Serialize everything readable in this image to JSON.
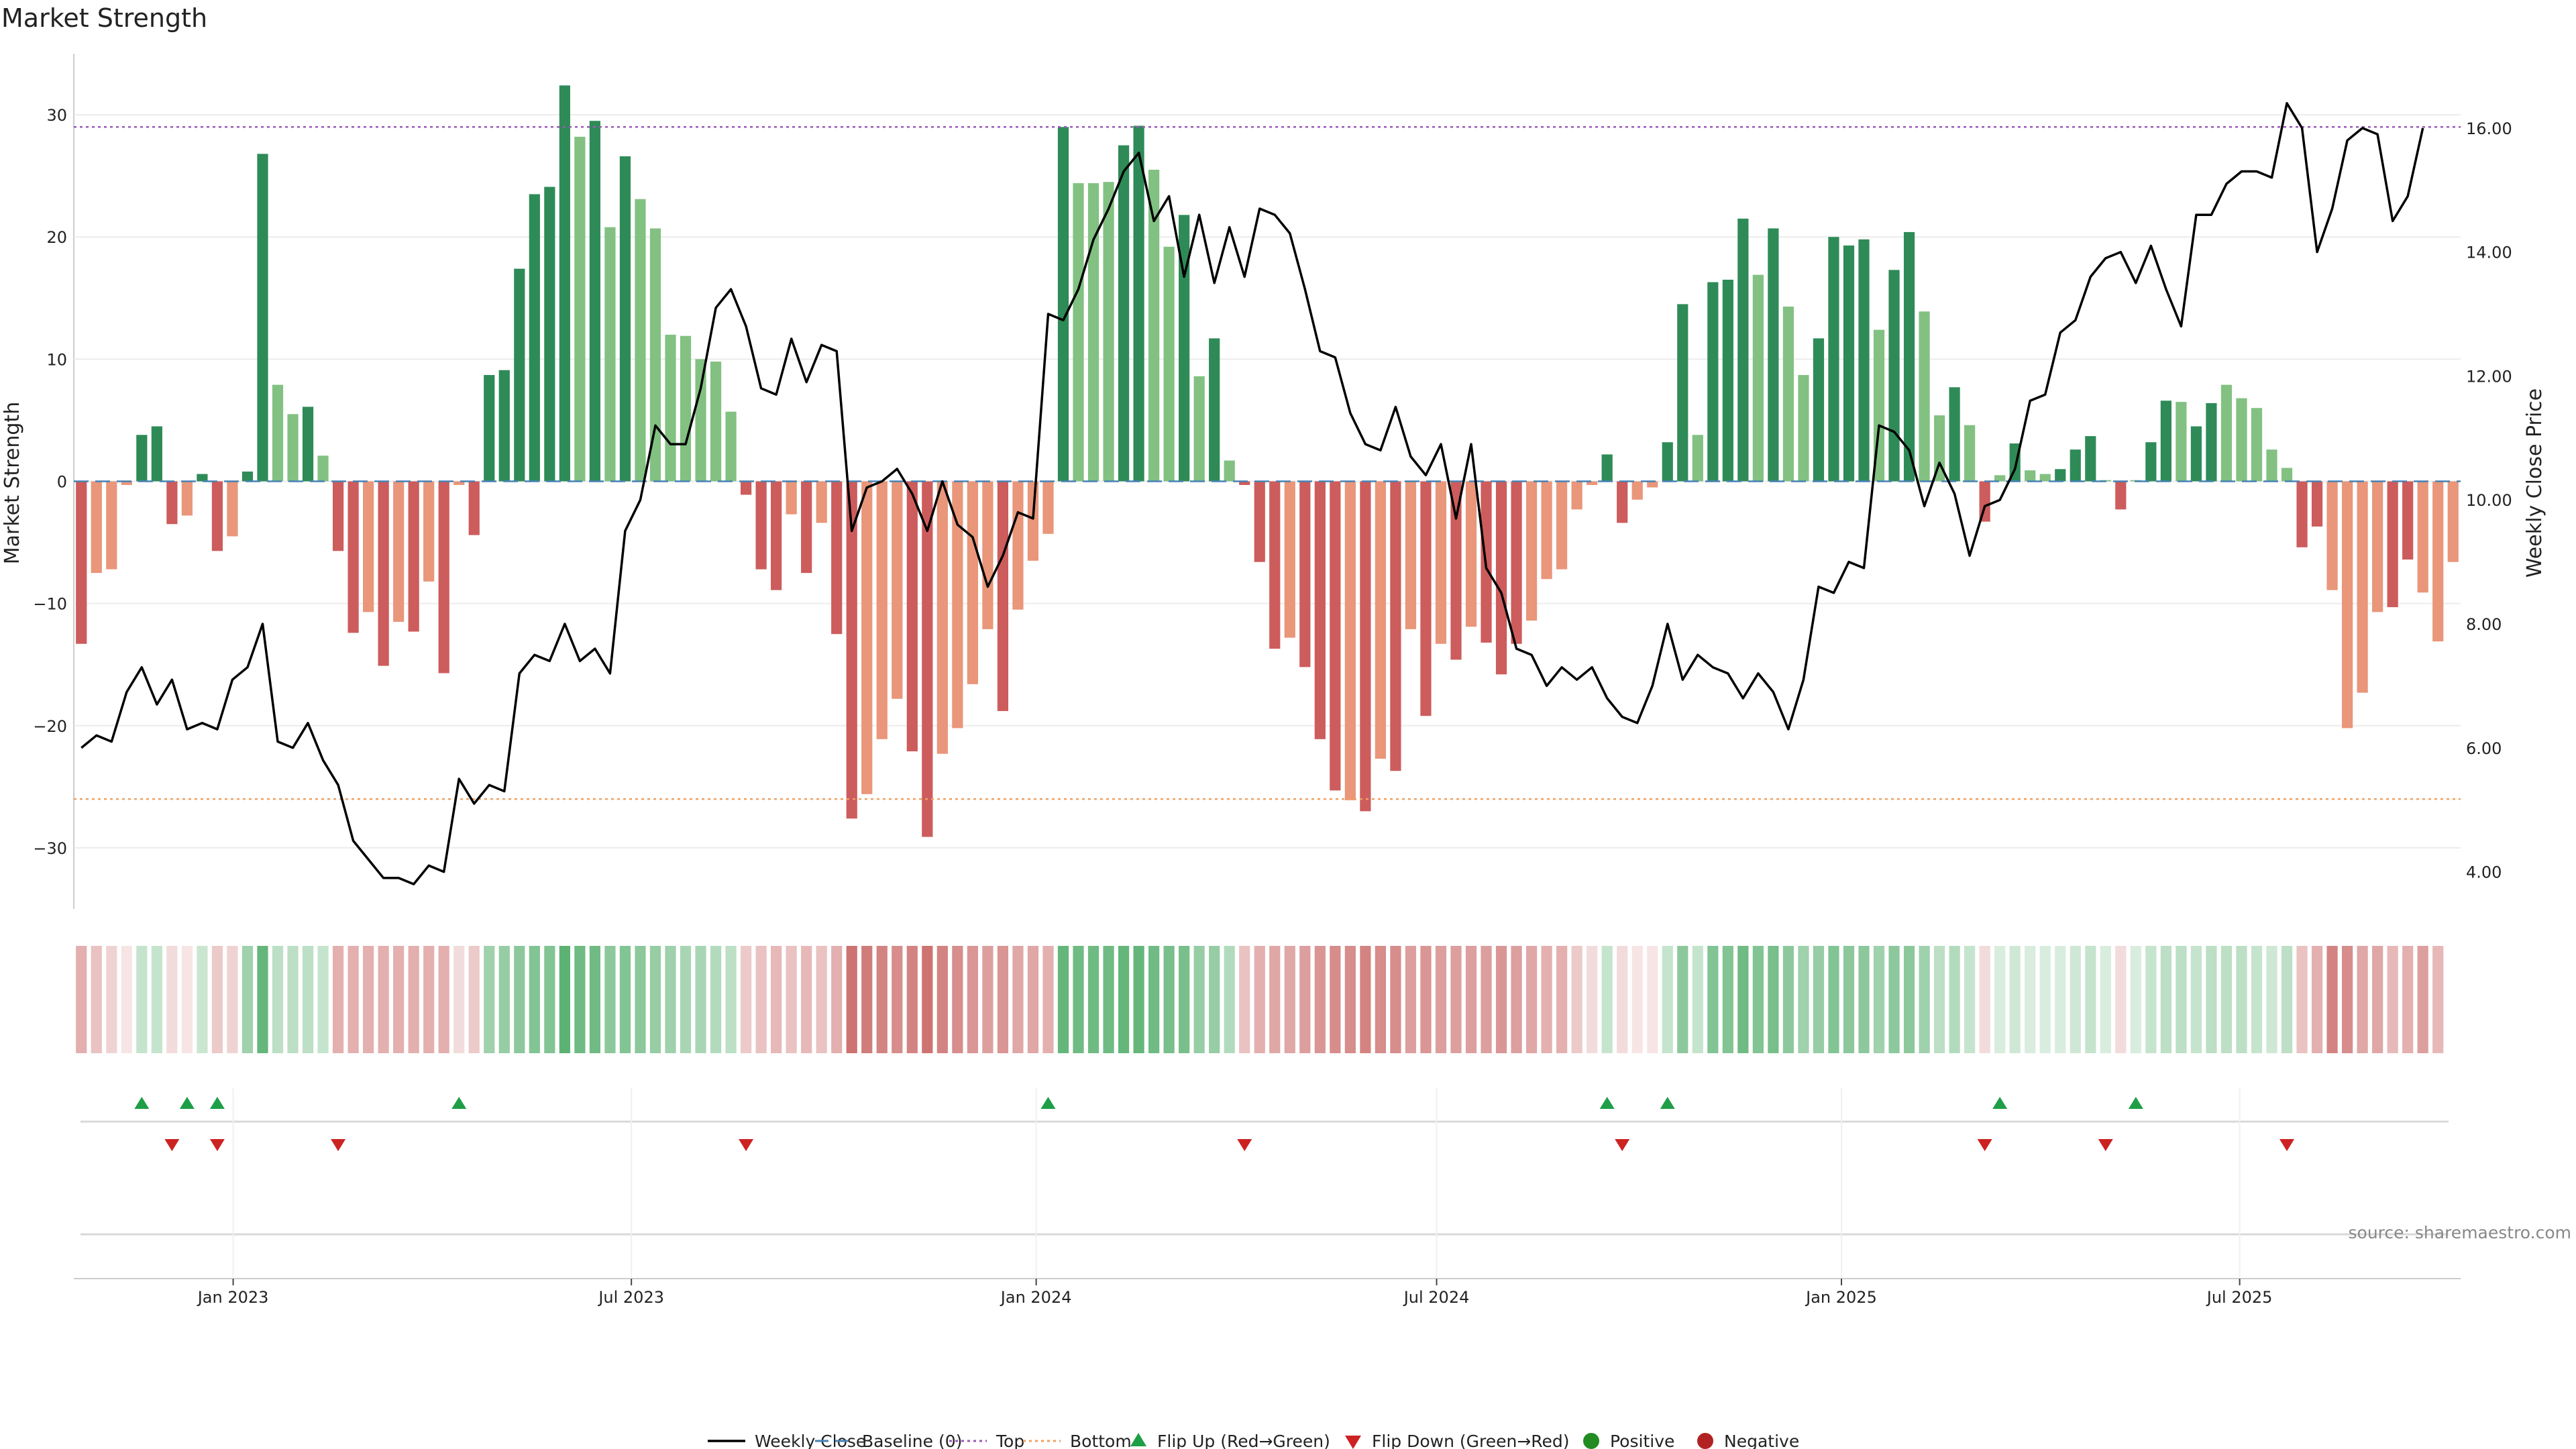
{
  "chart_data": {
    "type": "bar",
    "title": "Market Strength",
    "ylabel": "Market Strength",
    "y2label": "Weekly Close Price",
    "ylim": [
      -35,
      35
    ],
    "y2lim": [
      3.4,
      17.2
    ],
    "yticks": [
      -30,
      -20,
      -10,
      0,
      10,
      20,
      30
    ],
    "y2ticks": [
      "4.00",
      "6.00",
      "8.00",
      "10.00",
      "12.00",
      "14.00",
      "16.00"
    ],
    "top_level": 29,
    "bottom_level": -26,
    "date_range": [
      "2022-10-24",
      "2025-10-06"
    ],
    "x_ticks": [
      {
        "label": "Jan 2023",
        "date": "2023-01-01"
      },
      {
        "label": "Jul 2023",
        "date": "2023-07-01"
      },
      {
        "label": "Jan 2024",
        "date": "2024-01-01"
      },
      {
        "label": "Jul 2024",
        "date": "2024-07-01"
      },
      {
        "label": "Jan 2025",
        "date": "2025-01-01"
      },
      {
        "label": "Jul 2025",
        "date": "2025-07-01"
      }
    ],
    "strength": [
      -13.3,
      -7.5,
      -7.2,
      -0.3,
      3.8,
      4.5,
      -3.5,
      -2.8,
      0.6,
      -5.7,
      -4.5,
      0.8,
      26.8,
      7.9,
      5.5,
      6.1,
      2.1,
      -5.7,
      -12.4,
      -10.7,
      -15.1,
      -11.5,
      -12.3,
      -8.2,
      -15.7,
      -0.3,
      -4.4,
      8.7,
      9.1,
      17.4,
      23.5,
      24.1,
      32.4,
      28.2,
      29.5,
      20.8,
      26.6,
      23.1,
      20.7,
      12.0,
      11.9,
      10.0,
      9.8,
      5.7,
      -1.1,
      -7.2,
      -8.9,
      -2.7,
      -7.5,
      -3.4,
      -12.5,
      -27.6,
      -25.6,
      -21.1,
      -17.8,
      -22.1,
      -29.1,
      -22.3,
      -20.2,
      -16.6,
      -12.1,
      -18.8,
      -10.5,
      -6.5,
      -4.3,
      29.0,
      24.4,
      24.4,
      24.5,
      27.5,
      29.1,
      25.5,
      19.2,
      21.8,
      8.6,
      11.7,
      1.7,
      -0.3,
      -6.6,
      -13.7,
      -12.8,
      -15.2,
      -21.1,
      -25.3,
      -26.1,
      -27.0,
      -22.7,
      -23.7,
      -12.1,
      -19.2,
      -13.3,
      -14.6,
      -11.9,
      -13.2,
      -15.8,
      -13.3,
      -11.4,
      -8.0,
      -7.2,
      -2.3,
      -0.3,
      2.2,
      -3.4,
      -1.5,
      -0.5,
      3.2,
      14.5,
      3.8,
      16.3,
      16.5,
      21.5,
      16.9,
      20.7,
      14.3,
      8.7,
      11.7,
      20.0,
      19.3,
      19.8,
      12.4,
      17.3,
      20.4,
      13.9,
      5.4,
      7.7,
      4.6,
      -3.3,
      0.5,
      3.1,
      0.9,
      0.6,
      1.0,
      2.6,
      3.7,
      0.1,
      -2.3,
      0.1,
      3.2,
      6.6,
      6.5,
      4.5,
      6.4,
      7.9,
      6.8,
      6.0,
      2.6,
      1.1,
      -5.4,
      -3.7,
      -8.9,
      -20.2,
      -17.3,
      -10.7,
      -10.3,
      -6.4,
      -9.1,
      -13.1,
      -6.6
    ],
    "bar_shade": [
      2,
      1,
      1,
      1,
      3,
      3,
      2,
      1,
      3,
      2,
      1,
      3,
      3,
      1,
      1,
      3,
      1,
      2,
      2,
      1,
      2,
      1,
      2,
      1,
      2,
      1,
      2,
      3,
      3,
      3,
      3,
      3,
      3,
      1,
      3,
      1,
      3,
      1,
      1,
      1,
      1,
      1,
      1,
      1,
      2,
      2,
      2,
      1,
      2,
      1,
      2,
      2,
      1,
      1,
      1,
      2,
      2,
      1,
      1,
      1,
      1,
      2,
      1,
      1,
      1,
      3,
      1,
      1,
      1,
      3,
      3,
      1,
      1,
      3,
      1,
      3,
      1,
      2,
      2,
      2,
      1,
      2,
      2,
      2,
      1,
      2,
      1,
      2,
      1,
      2,
      1,
      2,
      1,
      2,
      2,
      2,
      1,
      1,
      1,
      1,
      1,
      3,
      2,
      1,
      1,
      3,
      3,
      1,
      3,
      3,
      3,
      1,
      3,
      1,
      1,
      3,
      3,
      3,
      3,
      1,
      3,
      3,
      1,
      1,
      3,
      1,
      2,
      1,
      3,
      1,
      1,
      3,
      3,
      3,
      1,
      2,
      1,
      3,
      3,
      1,
      3,
      3,
      1,
      1,
      1,
      2,
      1,
      2,
      2,
      1,
      1,
      1,
      1,
      2,
      2,
      1
    ],
    "heat": [
      0.45,
      0.35,
      0.25,
      0.15,
      0.3,
      0.3,
      0.2,
      0.15,
      0.28,
      0.3,
      0.25,
      0.5,
      0.8,
      0.35,
      0.35,
      0.35,
      0.3,
      0.45,
      0.45,
      0.45,
      0.45,
      0.45,
      0.45,
      0.45,
      0.45,
      0.2,
      0.3,
      0.5,
      0.55,
      0.6,
      0.65,
      0.65,
      0.85,
      0.75,
      0.75,
      0.6,
      0.65,
      0.6,
      0.55,
      0.5,
      0.45,
      0.45,
      0.4,
      0.35,
      0.3,
      0.35,
      0.4,
      0.35,
      0.4,
      0.35,
      0.45,
      0.8,
      0.75,
      0.7,
      0.65,
      0.7,
      0.8,
      0.7,
      0.65,
      0.6,
      0.55,
      0.6,
      0.5,
      0.5,
      0.45,
      0.8,
      0.75,
      0.75,
      0.75,
      0.8,
      0.8,
      0.75,
      0.7,
      0.7,
      0.55,
      0.55,
      0.4,
      0.35,
      0.45,
      0.5,
      0.5,
      0.55,
      0.6,
      0.65,
      0.65,
      0.7,
      0.65,
      0.65,
      0.55,
      0.6,
      0.55,
      0.55,
      0.55,
      0.55,
      0.6,
      0.55,
      0.5,
      0.45,
      0.45,
      0.3,
      0.2,
      0.3,
      0.2,
      0.15,
      0.15,
      0.3,
      0.6,
      0.3,
      0.65,
      0.65,
      0.75,
      0.65,
      0.7,
      0.6,
      0.5,
      0.55,
      0.65,
      0.6,
      0.6,
      0.5,
      0.6,
      0.6,
      0.5,
      0.35,
      0.4,
      0.3,
      0.2,
      0.2,
      0.25,
      0.2,
      0.2,
      0.2,
      0.25,
      0.3,
      0.2,
      0.2,
      0.2,
      0.3,
      0.35,
      0.35,
      0.3,
      0.35,
      0.35,
      0.35,
      0.3,
      0.25,
      0.35,
      0.35,
      0.45,
      0.7,
      0.65,
      0.5,
      0.5,
      0.4,
      0.45,
      0.55,
      0.4
    ],
    "close": [
      6.0,
      6.2,
      6.1,
      6.9,
      7.3,
      6.7,
      7.1,
      6.3,
      6.4,
      6.3,
      7.1,
      7.3,
      8.0,
      6.1,
      6.0,
      6.4,
      5.8,
      5.4,
      4.5,
      4.2,
      3.9,
      3.9,
      3.8,
      4.1,
      4.0,
      5.5,
      5.1,
      5.4,
      5.3,
      7.2,
      7.5,
      7.4,
      8.0,
      7.4,
      7.6,
      7.2,
      9.5,
      10.0,
      11.2,
      10.9,
      10.9,
      11.8,
      13.1,
      13.4,
      12.8,
      11.8,
      11.7,
      12.6,
      11.9,
      12.5,
      12.4,
      9.5,
      10.2,
      10.3,
      10.5,
      10.1,
      9.5,
      10.3,
      9.6,
      9.4,
      8.6,
      9.1,
      9.8,
      9.7,
      13.0,
      12.9,
      13.4,
      14.2,
      14.7,
      15.3,
      15.6,
      14.5,
      14.9,
      13.6,
      14.6,
      13.5,
      14.4,
      13.6,
      14.7,
      14.6,
      14.3,
      13.4,
      12.4,
      12.3,
      11.4,
      10.9,
      10.8,
      11.5,
      10.7,
      10.4,
      10.9,
      9.7,
      10.9,
      8.9,
      8.5,
      7.6,
      7.5,
      7.0,
      7.3,
      7.1,
      7.3,
      6.8,
      6.5,
      6.4,
      7.0,
      8.0,
      7.1,
      7.5,
      7.3,
      7.2,
      6.8,
      7.2,
      6.9,
      6.3,
      7.1,
      8.6,
      8.5,
      9.0,
      8.9,
      11.2,
      11.1,
      10.8,
      9.9,
      10.6,
      10.1,
      9.1,
      9.9,
      10.0,
      10.5,
      11.6,
      11.7,
      12.7,
      12.9,
      13.6,
      13.9,
      14.0,
      13.5,
      14.1,
      13.4,
      12.8,
      14.6,
      14.6,
      15.1,
      15.3,
      15.3,
      15.2,
      16.4,
      16.0,
      14.0,
      14.7,
      15.8,
      16.0,
      15.9,
      14.5,
      14.9,
      16.0
    ],
    "flip_up": [
      4,
      7,
      9,
      25,
      64,
      101,
      105,
      127,
      136
    ],
    "flip_down": [
      6,
      9,
      17,
      44,
      77,
      102,
      126,
      134,
      146
    ],
    "legend": [
      {
        "label": "Weekly Close",
        "key": "line"
      },
      {
        "label": "Baseline (0)",
        "key": "baseline"
      },
      {
        "label": "Top",
        "key": "top"
      },
      {
        "label": "Bottom",
        "key": "bottom"
      },
      {
        "label": "Flip Up (Red→Green)",
        "key": "flipup"
      },
      {
        "label": "Flip Down (Green→Red)",
        "key": "flipdown"
      },
      {
        "label": "Positive",
        "key": "pos"
      },
      {
        "label": "Negative",
        "key": "neg"
      }
    ],
    "source": "source: sharemaestro.com"
  },
  "colors": {
    "pos_dark": "#2e8b57",
    "pos_light": "#82c182",
    "neg_dark": "#cd5c5c",
    "neg_light": "#e9967a",
    "line": "#000000",
    "baseline": "#4682b4",
    "top": "#9b59b6",
    "bottom": "#f0a060",
    "flip_up": "#1e9e46",
    "flip_down": "#cc2222",
    "legend_pos": "#228b22",
    "legend_neg": "#b22222"
  }
}
